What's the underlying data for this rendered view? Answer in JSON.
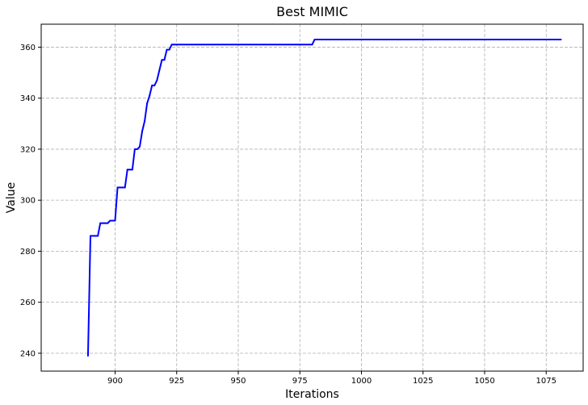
{
  "chart_data": {
    "type": "line",
    "title": "Best MIMIC",
    "xlabel": "Iterations",
    "ylabel": "Value",
    "xlim": [
      870,
      1090
    ],
    "ylim": [
      233,
      369
    ],
    "xticks": [
      900,
      925,
      950,
      975,
      1000,
      1025,
      1050,
      1075
    ],
    "yticks": [
      240,
      260,
      280,
      300,
      320,
      340,
      360
    ],
    "xtick_labels": [
      "900",
      "925",
      "950",
      "975",
      "1000",
      "1025",
      "1050",
      "1075"
    ],
    "ytick_labels": [
      "240",
      "260",
      "280",
      "300",
      "320",
      "340",
      "360"
    ],
    "grid": true,
    "series": [
      {
        "color": "#0000ff",
        "x": [
          889,
          890,
          891,
          892,
          893,
          894,
          895,
          896,
          897,
          898,
          899,
          900,
          901,
          902,
          903,
          904,
          905,
          906,
          907,
          908,
          909,
          910,
          911,
          912,
          913,
          914,
          915,
          916,
          917,
          918,
          919,
          920,
          921,
          922,
          923,
          924,
          925,
          950,
          975,
          980,
          981,
          1000,
          1025,
          1050,
          1075,
          1081
        ],
        "y": [
          239,
          286,
          286,
          286,
          286,
          291,
          291,
          291,
          291,
          292,
          292,
          292,
          305,
          305,
          305,
          305,
          312,
          312,
          312,
          320,
          320,
          321,
          327,
          331,
          338,
          341,
          345,
          345,
          347,
          351,
          355,
          355,
          359,
          359,
          361,
          361,
          361,
          361,
          361,
          361,
          363,
          363,
          363,
          363,
          363,
          363
        ]
      }
    ]
  }
}
